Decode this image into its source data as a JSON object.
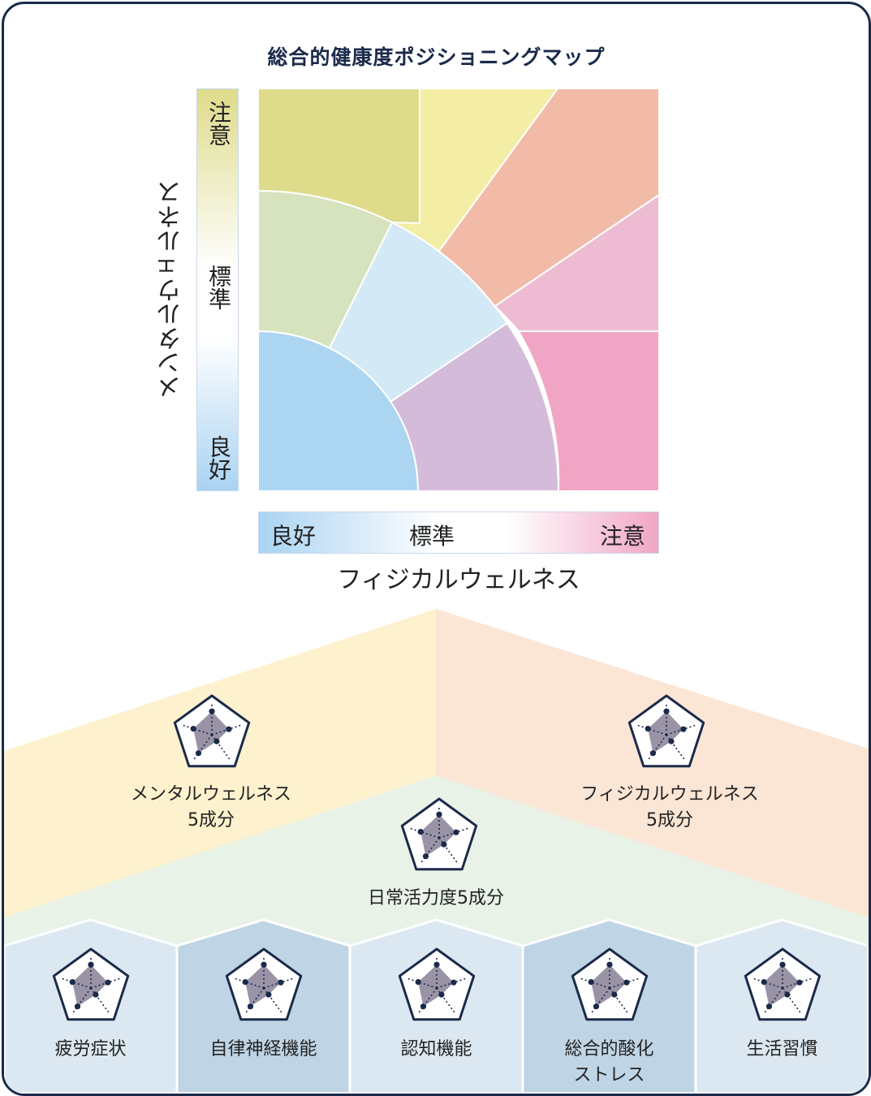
{
  "map": {
    "title": "総合的健康度ポジショニングマップ",
    "x_axis": {
      "title": "フィジカルウェルネス",
      "labels": [
        "良好",
        "標準",
        "注意"
      ]
    },
    "y_axis": {
      "title": "メンタルウェルネス",
      "labels": [
        "注意",
        "標準",
        "良好"
      ]
    },
    "colors": {
      "good_blue": "#acd5f2",
      "light_blue": "#d3e9f5",
      "green": "#d6e3be",
      "olive": "#dedb8b",
      "yellow": "#f3eda6",
      "salmon": "#f1bba8",
      "light_pink": "#edbcd3",
      "lavender": "#d4bbd9",
      "pink": "#f1a5c4"
    }
  },
  "pyramid": {
    "mental": {
      "line1": "メンタルウェルネス",
      "line2": "5成分",
      "color": "#fdf2cd"
    },
    "physical": {
      "line1": "フィジカルウェルネス",
      "line2": "5成分",
      "color": "#fbe5d5"
    },
    "daily": {
      "label": "日常活力度5成分",
      "color": "#e8f2e7"
    },
    "base": [
      {
        "lines": [
          "疲労症状"
        ],
        "color": "#dce8f1"
      },
      {
        "lines": [
          "自律神経機能"
        ],
        "color": "#bfd4e4"
      },
      {
        "lines": [
          "認知機能"
        ],
        "color": "#dce8f1"
      },
      {
        "lines": [
          "総合的酸化",
          "ストレス"
        ],
        "color": "#bfd4e4"
      },
      {
        "lines": [
          "生活習慣"
        ],
        "color": "#dce8f1"
      }
    ],
    "icon": {
      "name": "radar-chart-icon",
      "stroke": "#1b2a4a",
      "fill": "#9a93a6"
    }
  }
}
